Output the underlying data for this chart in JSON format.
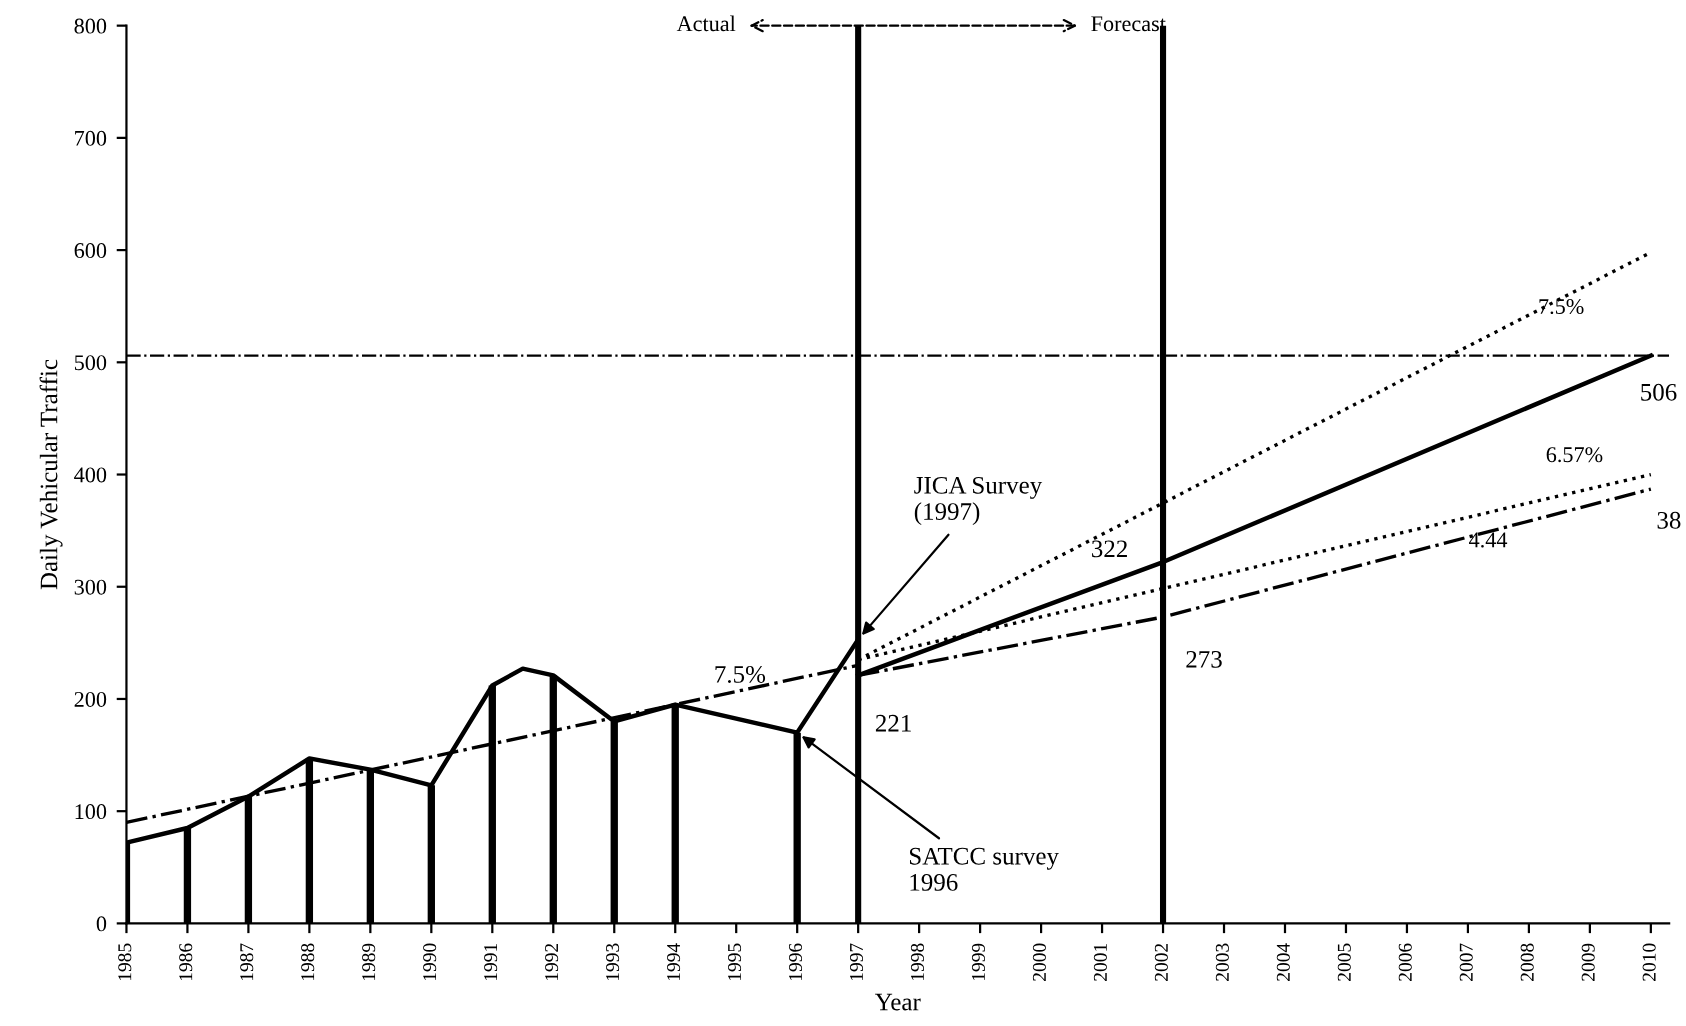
{
  "chart_data": {
    "type": "line",
    "xlabel": "Year",
    "ylabel": "Daily Vehicular Traffic",
    "xlim": [
      1985,
      2010.3
    ],
    "ylim": [
      0,
      800
    ],
    "xticks": [
      1985,
      1986,
      1987,
      1988,
      1989,
      1990,
      1991,
      1992,
      1993,
      1994,
      1995,
      1996,
      1997,
      1998,
      1999,
      2000,
      2001,
      2002,
      2003,
      2004,
      2005,
      2006,
      2007,
      2008,
      2009,
      2010
    ],
    "yticks": [
      0,
      100,
      200,
      300,
      400,
      500,
      600,
      700,
      800
    ],
    "grid": false,
    "legend": false,
    "marker": "none",
    "series": [
      {
        "type": "bar",
        "color": "#000000",
        "x": [
          1985,
          1986,
          1987,
          1988,
          1989,
          1990,
          1991,
          1992,
          1993,
          1994,
          1996
        ],
        "values": [
          72,
          85,
          113,
          147,
          137,
          123,
          212,
          221,
          180,
          195,
          170
        ]
      },
      {
        "color": "#000000",
        "line_style": "solid",
        "x": [
          1985,
          1986,
          1987,
          1988,
          1989,
          1990,
          1991,
          1991.5,
          1992,
          1993,
          1994,
          1996,
          1997
        ],
        "values": [
          72,
          85,
          113,
          147,
          137,
          123,
          212,
          227,
          221,
          180,
          195,
          170,
          253
        ]
      },
      {
        "color": "#000000",
        "line_style": "dashdot",
        "x": [
          1985,
          1997
        ],
        "values": [
          90,
          230
        ]
      },
      {
        "color": "#000000",
        "line_style": "dotted",
        "x": [
          1997,
          2010
        ],
        "values": [
          235,
          598
        ]
      },
      {
        "color": "#000000",
        "line_style": "solid",
        "x": [
          1997,
          2002,
          2010
        ],
        "values": [
          221,
          322,
          506
        ]
      },
      {
        "color": "#000000",
        "line_style": "dotted",
        "x": [
          1997,
          2010
        ],
        "values": [
          235,
          400
        ]
      },
      {
        "color": "#000000",
        "line_style": "dashdot",
        "x": [
          1997,
          2002,
          2010
        ],
        "values": [
          221,
          273,
          387
        ]
      }
    ],
    "ref_lines": [
      {
        "axis": "y",
        "value": 506,
        "color": "#000000",
        "line_style": "dashdot"
      },
      {
        "axis": "x",
        "value": 1997,
        "color": "#000000",
        "line_style": "solid"
      },
      {
        "axis": "x",
        "value": 2002,
        "color": "#000000",
        "line_style": "solid"
      }
    ],
    "annotations": [
      "Actual",
      "Forecast",
      {
        "text": "221",
        "x": 1997,
        "y": 221
      },
      {
        "text": "322",
        "x": 2002,
        "y": 322
      },
      {
        "text": "273",
        "x": 2002,
        "y": 273
      },
      {
        "text": "506",
        "x": 2010,
        "y": 506
      },
      {
        "text": "38",
        "x": 2010,
        "y": 387
      },
      {
        "text": "7.5%",
        "x": 1996,
        "y": 215
      },
      "7.5%",
      "6.57%",
      "4.44",
      {
        "text": "JICA Survey\n(1997)",
        "x": 1997,
        "y": 253
      },
      {
        "text": "SATCC survey\n1996",
        "x": 1996,
        "y": 170
      }
    ]
  }
}
